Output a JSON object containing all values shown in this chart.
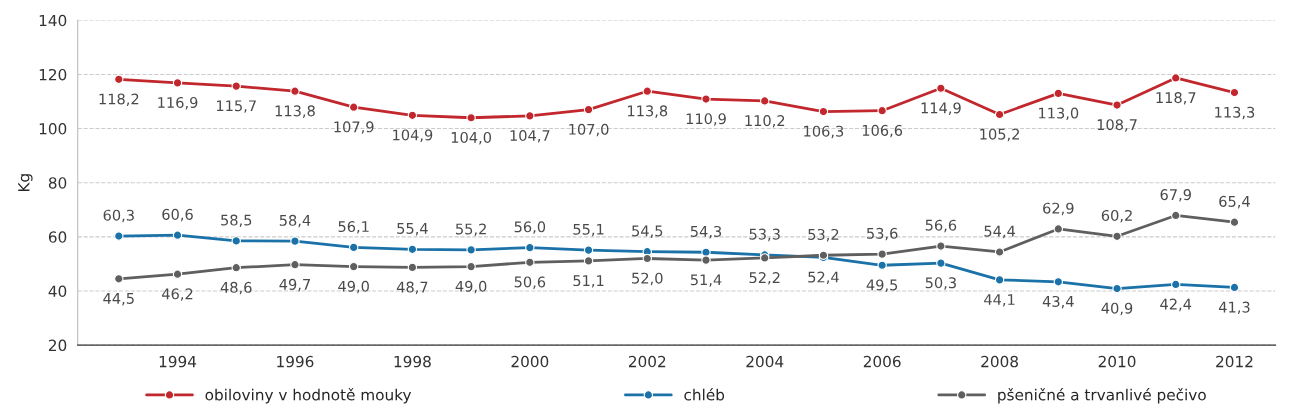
{
  "chart_data": {
    "type": "line",
    "ylabel": "Kg",
    "x": [
      1993,
      1994,
      1995,
      1996,
      1997,
      1998,
      1999,
      2000,
      2001,
      2002,
      2003,
      2004,
      2005,
      2006,
      2007,
      2008,
      2009,
      2010,
      2011,
      2012
    ],
    "xlim": [
      1992.3,
      2012.7
    ],
    "xticks": [
      1994,
      1996,
      1998,
      2000,
      2002,
      2004,
      2006,
      2008,
      2010,
      2012
    ],
    "ylim": [
      20,
      140
    ],
    "yticks": [
      20,
      40,
      60,
      80,
      100,
      120,
      140
    ],
    "grid": "y",
    "legend": "bottom",
    "marker": "circle",
    "line_style": "solid",
    "series": [
      {
        "name": "obiloviny v hodnotě mouky",
        "color": "#c1272d",
        "values": [
          118.2,
          116.9,
          115.7,
          113.8,
          107.9,
          104.9,
          104.0,
          104.7,
          107.0,
          113.8,
          110.9,
          110.2,
          106.3,
          106.6,
          114.9,
          105.2,
          113.0,
          108.7,
          118.7,
          113.3
        ],
        "value_labels": [
          "118,2",
          "116,9",
          "115,7",
          "113,8",
          "107,9",
          "104,9",
          "104,0",
          "104,7",
          "107,0",
          "113,8",
          "110,9",
          "110,2",
          "106,3",
          "106,6",
          "114,9",
          "105,2",
          "113,0",
          "108,7",
          "118,7",
          "113,3"
        ]
      },
      {
        "name": "chléb",
        "color": "#1a72a8",
        "values": [
          60.3,
          60.6,
          58.5,
          58.4,
          56.1,
          55.4,
          55.2,
          56.0,
          55.1,
          54.5,
          54.3,
          53.3,
          52.4,
          49.5,
          50.3,
          44.1,
          43.4,
          40.9,
          42.4,
          41.3
        ],
        "value_labels": [
          "60,3",
          "60,6",
          "58,5",
          "58,4",
          "56,1",
          "55,4",
          "55,2",
          "56,0",
          "55,1",
          "54,5",
          "54,3",
          "53,3",
          "52,4",
          "49,5",
          "50,3",
          "44,1",
          "43,4",
          "40,9",
          "42,4",
          "41,3"
        ]
      },
      {
        "name": "pšeničné a trvanlivé pečivo",
        "color": "#5f5f5f",
        "values": [
          44.5,
          46.2,
          48.6,
          49.7,
          49.0,
          48.7,
          49.0,
          50.6,
          51.1,
          52.0,
          51.4,
          52.2,
          53.2,
          53.6,
          56.6,
          54.4,
          62.9,
          60.2,
          67.9,
          65.4
        ],
        "value_labels": [
          "44,5",
          "46,2",
          "48,6",
          "49,7",
          "49,0",
          "48,7",
          "49,0",
          "50,6",
          "51,1",
          "52,0",
          "51,4",
          "52,2",
          "53,2",
          "53,6",
          "56,6",
          "54,4",
          "62,9",
          "60,2",
          "67,9",
          "65,4"
        ]
      }
    ]
  }
}
